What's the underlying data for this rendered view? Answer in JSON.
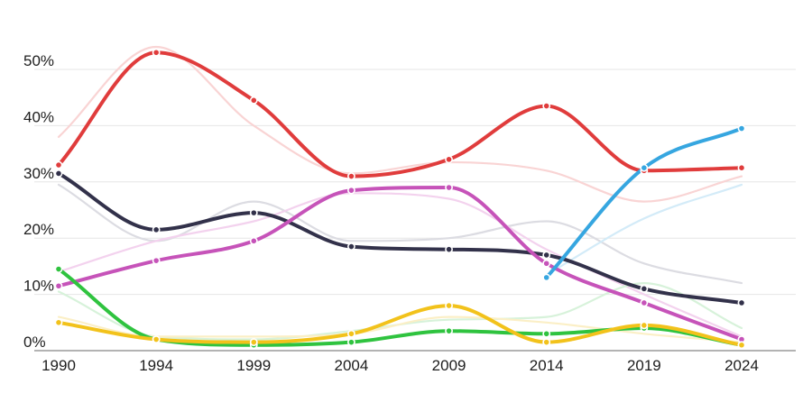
{
  "chart_data": {
    "type": "line",
    "title": "",
    "xlabel": "",
    "ylabel": "",
    "x": [
      "1990",
      "1994",
      "1999",
      "2004",
      "2009",
      "2014",
      "2019",
      "2024"
    ],
    "y_ticks": [
      "0%",
      "10%",
      "20%",
      "30%",
      "40%",
      "50%"
    ],
    "ylim": [
      0,
      50
    ],
    "grid": true,
    "legend": "none",
    "series": [
      {
        "color": "#e03c3c",
        "values": [
          33,
          53,
          44.5,
          31,
          34,
          43.5,
          32,
          32.5
        ],
        "faded_color": "#f9d4d4",
        "faded_values": [
          38,
          54,
          40,
          31.5,
          33.5,
          32,
          26.5,
          31
        ]
      },
      {
        "color": "#32314a",
        "values": [
          31.5,
          21.5,
          24.5,
          18.5,
          18,
          17,
          11,
          8.5
        ],
        "faded_color": "#dcdce2",
        "faded_values": [
          29.5,
          19.5,
          26.5,
          19.5,
          20,
          23,
          15.5,
          12
        ]
      },
      {
        "color": "#c653b9",
        "values": [
          11.5,
          16,
          19.5,
          28.5,
          29,
          15.5,
          8.5,
          2
        ],
        "faded_color": "#f3d2ee",
        "faded_values": [
          14,
          19.5,
          23,
          28,
          27,
          18,
          10,
          2.5
        ]
      },
      {
        "color": "#36a6e0",
        "values": [
          null,
          null,
          null,
          null,
          null,
          13,
          32.5,
          39.5
        ],
        "faded_color": "#d3ebf8",
        "faded_values": [
          null,
          null,
          null,
          null,
          null,
          13.5,
          23.5,
          29.5
        ]
      },
      {
        "color": "#2fc33f",
        "values": [
          14.5,
          2,
          1,
          1.5,
          3.5,
          3,
          4,
          1
        ],
        "faded_color": "#d7f2da",
        "faded_values": [
          10.5,
          2.5,
          2,
          3.5,
          5.5,
          6,
          12,
          4
        ]
      },
      {
        "color": "#f2c21b",
        "values": [
          5,
          2,
          1.5,
          3,
          8,
          1.5,
          4.5,
          1
        ],
        "faded_color": "#fbefc6",
        "faded_values": [
          6,
          2.5,
          2.5,
          3,
          6,
          5,
          3,
          1.5
        ]
      }
    ]
  }
}
